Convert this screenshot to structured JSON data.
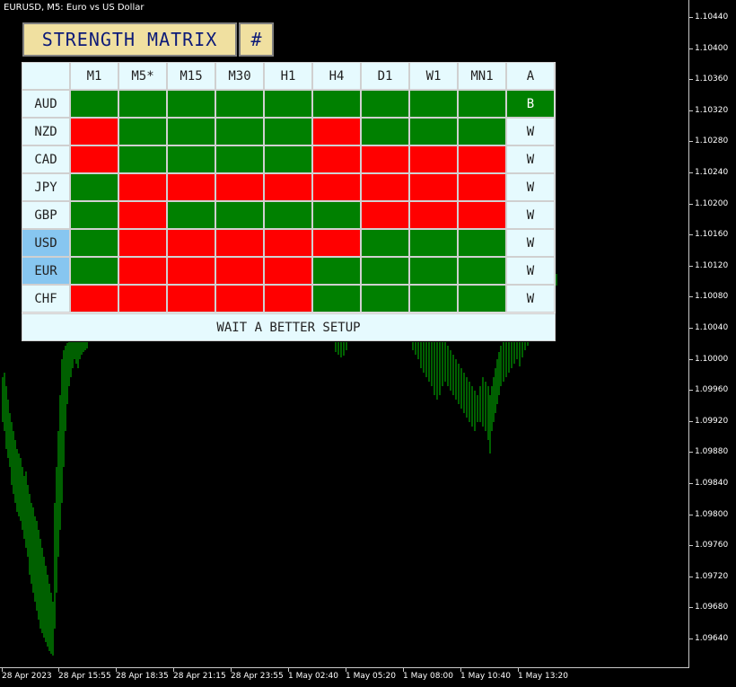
{
  "chart": {
    "title": "EURUSD, M5:  Euro vs US Dollar",
    "price_labels": [
      "1.10440",
      "1.10400",
      "1.10360",
      "1.10320",
      "1.10280",
      "1.10240",
      "1.10200",
      "1.10160",
      "1.10120",
      "1.10080",
      "1.10040",
      "1.10000",
      "1.09960",
      "1.09920",
      "1.09880",
      "1.09840",
      "1.09800",
      "1.09760",
      "1.09720",
      "1.09680",
      "1.09640"
    ],
    "time_labels": [
      "28 Apr 2023",
      "28 Apr 15:55",
      "28 Apr 18:35",
      "28 Apr 21:15",
      "28 Apr 23:55",
      "1 May 02:40",
      "1 May 05:20",
      "1 May 08:00",
      "1 May 10:40",
      "1 May 13:20"
    ],
    "colors": {
      "background": "#000000",
      "candles": "#00c000"
    }
  },
  "matrix": {
    "title": "STRENGTH MATRIX",
    "hash_label": "#",
    "columns": [
      "M1",
      "M5*",
      "M15",
      "M30",
      "H1",
      "H4",
      "D1",
      "W1",
      "MN1",
      "A"
    ],
    "rows": [
      {
        "currency": "AUD",
        "highlight": false,
        "cells": [
          "G",
          "G",
          "G",
          "G",
          "G",
          "G",
          "G",
          "G",
          "G"
        ],
        "signal": "B"
      },
      {
        "currency": "NZD",
        "highlight": false,
        "cells": [
          "R",
          "G",
          "G",
          "G",
          "G",
          "R",
          "G",
          "G",
          "G"
        ],
        "signal": "W"
      },
      {
        "currency": "CAD",
        "highlight": false,
        "cells": [
          "R",
          "G",
          "G",
          "G",
          "G",
          "R",
          "R",
          "R",
          "R"
        ],
        "signal": "W"
      },
      {
        "currency": "JPY",
        "highlight": false,
        "cells": [
          "G",
          "R",
          "R",
          "R",
          "R",
          "R",
          "R",
          "R",
          "R"
        ],
        "signal": "W"
      },
      {
        "currency": "GBP",
        "highlight": false,
        "cells": [
          "G",
          "R",
          "G",
          "G",
          "G",
          "G",
          "R",
          "R",
          "R"
        ],
        "signal": "W"
      },
      {
        "currency": "USD",
        "highlight": true,
        "cells": [
          "G",
          "R",
          "R",
          "R",
          "R",
          "R",
          "G",
          "G",
          "G"
        ],
        "signal": "W"
      },
      {
        "currency": "EUR",
        "highlight": true,
        "cells": [
          "G",
          "R",
          "R",
          "R",
          "R",
          "G",
          "G",
          "G",
          "G"
        ],
        "signal": "W"
      },
      {
        "currency": "CHF",
        "highlight": false,
        "cells": [
          "R",
          "R",
          "R",
          "R",
          "R",
          "G",
          "G",
          "G",
          "G"
        ],
        "signal": "W"
      }
    ],
    "footer": "WAIT A BETTER SETUP",
    "colors": {
      "green": "#008000",
      "red": "#ff0000",
      "header": "#f0e0a0",
      "highlight": "#87c6f0"
    }
  }
}
